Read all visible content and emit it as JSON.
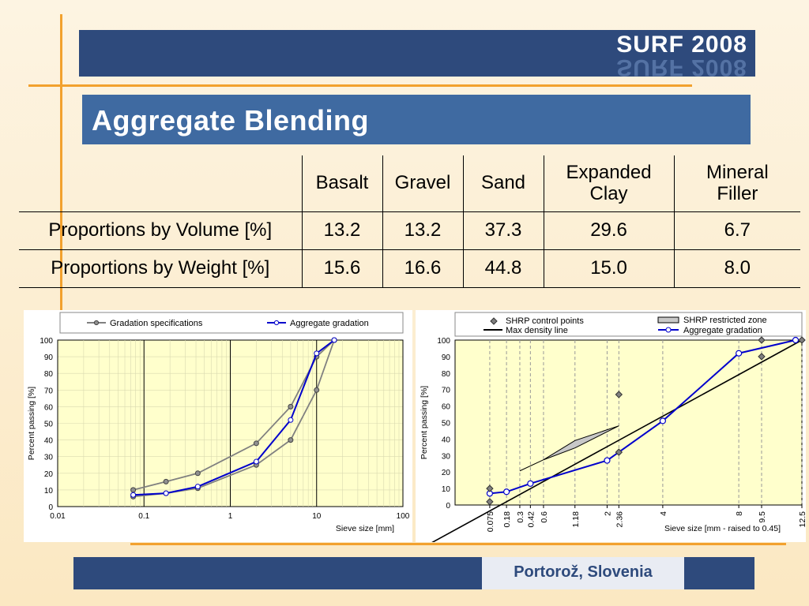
{
  "header": {
    "badge": "SURF 2008",
    "title": "Aggregate Blending"
  },
  "table": {
    "columns": [
      "Basalt",
      "Gravel",
      "Sand",
      "Expanded Clay",
      "Mineral Filler"
    ],
    "rows": [
      {
        "label": "Proportions by Volume [%]",
        "values": [
          "13.2",
          "13.2",
          "37.3",
          "29.6",
          "6.7"
        ]
      },
      {
        "label": "Proportions by Weight [%]",
        "values": [
          "15.6",
          "16.6",
          "44.8",
          "15.0",
          "8.0"
        ]
      }
    ]
  },
  "footer": {
    "location": "Portorož, Slovenia"
  },
  "chart_data": [
    {
      "type": "line",
      "xscale": "log",
      "xlabel": "Sieve size [mm]",
      "ylabel": "Percent passing [%]",
      "xlim": [
        0.01,
        100
      ],
      "ylim": [
        0,
        100
      ],
      "xticks": [
        "0.01",
        "0.1",
        "1",
        "10",
        "100"
      ],
      "yticks": [
        "0",
        "10",
        "20",
        "30",
        "40",
        "50",
        "60",
        "70",
        "80",
        "90",
        "100"
      ],
      "legend": "top",
      "series": [
        {
          "name": "Gradation specifications",
          "color": "#808080",
          "x": [
            0.075,
            0.18,
            0.42,
            2,
            5,
            10,
            16
          ],
          "y": [
            10,
            15,
            20,
            38,
            60,
            90,
            100
          ]
        },
        {
          "name": "Gradation specifications",
          "color": "#808080",
          "x": [
            0.075,
            0.18,
            0.42,
            2,
            5,
            10,
            16
          ],
          "y": [
            6,
            8,
            11,
            25,
            40,
            70,
            100
          ]
        },
        {
          "name": "Aggregate gradation",
          "color": "#0000cc",
          "x": [
            0.075,
            0.18,
            0.42,
            2,
            5,
            10,
            16
          ],
          "y": [
            7,
            8,
            12,
            27,
            52,
            92,
            100
          ]
        }
      ]
    },
    {
      "type": "line",
      "xscale": "power 0.45",
      "xlabel": "Sieve size [mm - raised to 0.45]",
      "ylabel": "Percent passing [%]",
      "xlim": [
        0,
        12.5
      ],
      "ylim": [
        0,
        100
      ],
      "xticks": [
        "0.075",
        "0.18",
        "0.3",
        "0.42",
        "0.6",
        "1.18",
        "2",
        "2.36",
        "4",
        "8",
        "9.5",
        "12.5"
      ],
      "yticks": [
        "0",
        "10",
        "20",
        "30",
        "40",
        "50",
        "60",
        "70",
        "80",
        "90",
        "100"
      ],
      "legend": "top",
      "legend_entries": [
        "SHRP control points",
        "SHRP restricted zone",
        "Max density line",
        "Aggregate gradation"
      ],
      "control_points": {
        "x": [
          0.075,
          0.075,
          2.36,
          2.36,
          9.5,
          9.5,
          12.5
        ],
        "y": [
          2,
          10,
          32,
          67,
          90,
          100,
          100
        ]
      },
      "restricted_zone": {
        "x": [
          0.3,
          0.6,
          1.18,
          2.36,
          1.18,
          0.6,
          0.3
        ],
        "y": [
          20.7,
          27.4,
          34.6,
          48.0,
          39.1,
          27.4,
          20.7
        ]
      },
      "max_density_line": {
        "x": [
          0,
          12.5
        ],
        "y": [
          0,
          100
        ]
      },
      "aggregate_gradation": {
        "x": [
          0.075,
          0.18,
          0.42,
          2,
          4,
          8,
          12
        ],
        "y": [
          7,
          8,
          13,
          27,
          51,
          92,
          100
        ]
      }
    }
  ]
}
